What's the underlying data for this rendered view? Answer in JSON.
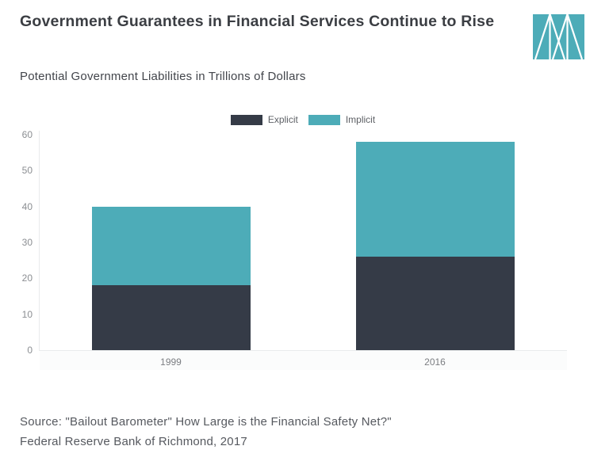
{
  "header": {
    "title": "Government Guarantees in Financial Services Continue to Rise",
    "subtitle": "Potential Government Liabilities in Trillions of Dollars"
  },
  "logo": {
    "label": "Marketplace logo",
    "color": "#4dacb8"
  },
  "chart_data": {
    "type": "bar",
    "stacked": true,
    "title": "Potential Government Liabilities in Trillions of Dollars",
    "categories": [
      "1999",
      "2016"
    ],
    "series": [
      {
        "name": "Explicit",
        "color": "#353b47",
        "values": [
          18,
          26
        ]
      },
      {
        "name": "Implicit",
        "color": "#4dacb8",
        "values": [
          22,
          32
        ]
      }
    ],
    "totals": [
      40,
      58
    ],
    "ylim": [
      0,
      60
    ],
    "yticks": [
      0,
      10,
      20,
      30,
      40,
      50,
      60
    ],
    "xlabel": "",
    "ylabel": "",
    "grid": false,
    "legend_position": "top-center"
  },
  "footer": {
    "source_line1": "Source: \"Bailout Barometer\" How Large is the Financial Safety Net?\"",
    "source_line2": "Federal Reserve Bank of Richmond, 2017"
  },
  "colors": {
    "explicit": "#353b47",
    "implicit": "#4dacb8",
    "axis_line": "#e9ebec",
    "tick_text": "#8b8e92",
    "title_text": "#3b3e43"
  }
}
